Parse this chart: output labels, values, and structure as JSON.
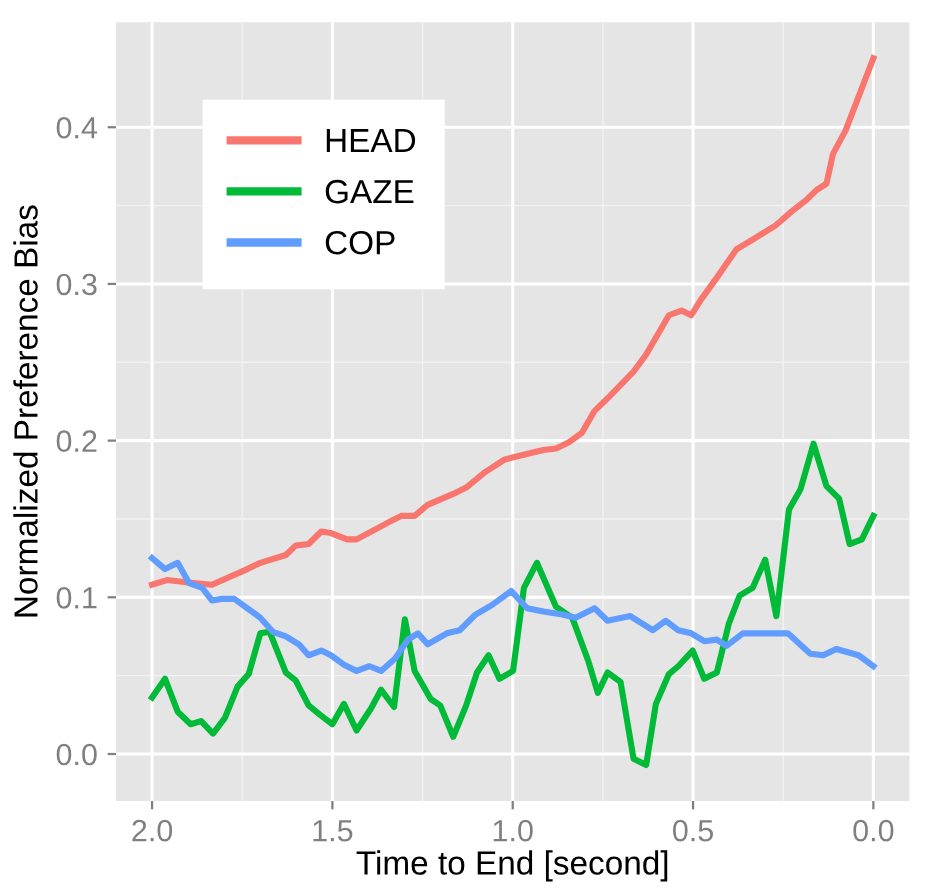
{
  "chart_data": {
    "type": "line",
    "xlabel": "Time to End [second]",
    "ylabel": "Normalized Preference Bias",
    "xlim": [
      2.1,
      -0.1
    ],
    "ylim": [
      -0.03,
      0.467
    ],
    "xticks": [
      {
        "value": 2.0,
        "label": "2.0"
      },
      {
        "value": 1.5,
        "label": "1.5"
      },
      {
        "value": 1.0,
        "label": "1.0"
      },
      {
        "value": 0.5,
        "label": "0.5"
      },
      {
        "value": 0.0,
        "label": "0.0"
      }
    ],
    "yticks": [
      {
        "value": 0.0,
        "label": "0.0"
      },
      {
        "value": 0.1,
        "label": "0.1"
      },
      {
        "value": 0.2,
        "label": "0.2"
      },
      {
        "value": 0.3,
        "label": "0.3"
      },
      {
        "value": 0.4,
        "label": "0.4"
      }
    ],
    "grid": true,
    "legend": "top left",
    "marker": "none",
    "line_style": "solid",
    "series": [
      {
        "name": "HEAD",
        "color": "#f8766d",
        "x": [
          2.0,
          1.959,
          1.879,
          1.834,
          1.736,
          1.7,
          1.629,
          1.602,
          1.566,
          1.531,
          1.504,
          1.459,
          1.433,
          1.343,
          1.308,
          1.272,
          1.236,
          1.165,
          1.129,
          1.076,
          1.022,
          0.987,
          0.915,
          0.88,
          0.844,
          0.808,
          0.773,
          0.737,
          0.665,
          0.63,
          0.567,
          0.532,
          0.505,
          0.478,
          0.434,
          0.38,
          0.344,
          0.309,
          0.273,
          0.228,
          0.184,
          0.157,
          0.13,
          0.112,
          0.077,
          0.0
        ],
        "values": [
          0.108,
          0.111,
          0.109,
          0.108,
          0.118,
          0.122,
          0.127,
          0.133,
          0.134,
          0.142,
          0.141,
          0.137,
          0.137,
          0.148,
          0.152,
          0.152,
          0.159,
          0.166,
          0.17,
          0.18,
          0.188,
          0.19,
          0.194,
          0.195,
          0.199,
          0.205,
          0.219,
          0.227,
          0.244,
          0.255,
          0.28,
          0.283,
          0.28,
          0.29,
          0.304,
          0.322,
          0.327,
          0.332,
          0.337,
          0.346,
          0.354,
          0.36,
          0.364,
          0.383,
          0.398,
          0.444
        ]
      },
      {
        "name": "GAZE",
        "color": "#00ba38",
        "x": [
          2.0,
          1.964,
          1.929,
          1.893,
          1.864,
          1.831,
          1.798,
          1.763,
          1.732,
          1.7,
          1.674,
          1.629,
          1.602,
          1.566,
          1.534,
          1.5,
          1.468,
          1.433,
          1.393,
          1.365,
          1.329,
          1.299,
          1.272,
          1.227,
          1.201,
          1.165,
          1.129,
          1.099,
          1.067,
          1.037,
          0.999,
          0.969,
          0.933,
          0.88,
          0.835,
          0.79,
          0.764,
          0.737,
          0.701,
          0.665,
          0.63,
          0.603,
          0.567,
          0.541,
          0.501,
          0.469,
          0.434,
          0.401,
          0.371,
          0.335,
          0.3,
          0.269,
          0.234,
          0.202,
          0.166,
          0.13,
          0.095,
          0.066,
          0.032,
          0.0
        ],
        "values": [
          0.036,
          0.048,
          0.027,
          0.019,
          0.021,
          0.013,
          0.023,
          0.043,
          0.051,
          0.077,
          0.078,
          0.052,
          0.047,
          0.031,
          0.025,
          0.019,
          0.032,
          0.015,
          0.029,
          0.041,
          0.03,
          0.086,
          0.053,
          0.035,
          0.031,
          0.011,
          0.031,
          0.052,
          0.063,
          0.048,
          0.053,
          0.106,
          0.122,
          0.094,
          0.087,
          0.059,
          0.039,
          0.052,
          0.046,
          -0.003,
          -0.007,
          0.032,
          0.051,
          0.056,
          0.066,
          0.048,
          0.052,
          0.083,
          0.101,
          0.106,
          0.124,
          0.088,
          0.156,
          0.169,
          0.198,
          0.171,
          0.163,
          0.134,
          0.137,
          0.152
        ]
      },
      {
        "name": "COP",
        "color": "#619cff",
        "x": [
          2.0,
          1.964,
          1.929,
          1.897,
          1.861,
          1.834,
          1.807,
          1.772,
          1.736,
          1.7,
          1.665,
          1.629,
          1.593,
          1.566,
          1.531,
          1.504,
          1.468,
          1.433,
          1.397,
          1.365,
          1.326,
          1.29,
          1.263,
          1.236,
          1.183,
          1.147,
          1.103,
          1.058,
          1.004,
          0.96,
          0.915,
          0.862,
          0.826,
          0.773,
          0.737,
          0.674,
          0.612,
          0.576,
          0.541,
          0.505,
          0.469,
          0.434,
          0.407,
          0.362,
          0.309,
          0.237,
          0.175,
          0.139,
          0.103,
          0.041,
          0.0
        ],
        "values": [
          0.125,
          0.118,
          0.122,
          0.109,
          0.106,
          0.098,
          0.099,
          0.099,
          0.093,
          0.087,
          0.078,
          0.075,
          0.07,
          0.063,
          0.066,
          0.063,
          0.057,
          0.053,
          0.056,
          0.053,
          0.061,
          0.073,
          0.077,
          0.07,
          0.077,
          0.079,
          0.089,
          0.095,
          0.104,
          0.093,
          0.091,
          0.089,
          0.087,
          0.093,
          0.085,
          0.088,
          0.079,
          0.085,
          0.079,
          0.077,
          0.072,
          0.073,
          0.069,
          0.077,
          0.077,
          0.077,
          0.064,
          0.063,
          0.067,
          0.063,
          0.056
        ]
      }
    ]
  }
}
